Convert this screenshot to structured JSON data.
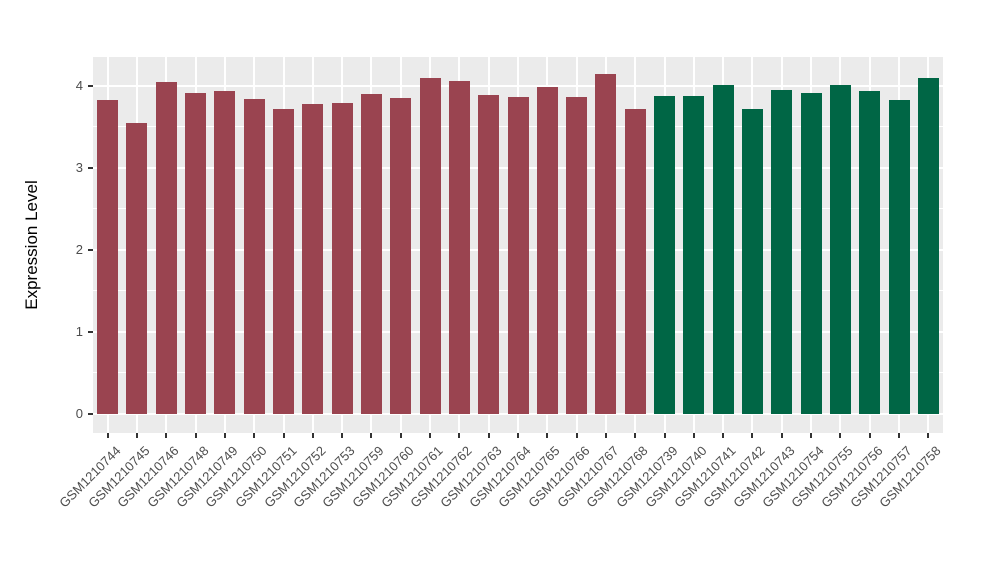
{
  "figure": {
    "background_color": "#FFFFFF",
    "panel_background_color": "#EBEBEB",
    "gridline_color": "#FFFFFF",
    "tick_mark_color": "#333333",
    "axis_text_color": "#4D4D4D"
  },
  "chart_data": {
    "type": "bar",
    "title": "",
    "xlabel": "",
    "ylabel": "Expression Level",
    "ylim": [
      0,
      4.35
    ],
    "yticks": [
      0,
      1,
      2,
      3,
      4
    ],
    "yticks_minor": [
      0.5,
      1.5,
      2.5,
      3.5
    ],
    "grid": "white major+minor horizontal lines, white major vertical lines on gray panel",
    "legend_position": "none",
    "categories": [
      "GSM1210744",
      "GSM1210745",
      "GSM1210746",
      "GSM1210748",
      "GSM1210749",
      "GSM1210750",
      "GSM1210751",
      "GSM1210752",
      "GSM1210753",
      "GSM1210759",
      "GSM1210760",
      "GSM1210761",
      "GSM1210762",
      "GSM1210763",
      "GSM1210764",
      "GSM1210765",
      "GSM1210766",
      "GSM1210767",
      "GSM1210768",
      "GSM1210739",
      "GSM1210740",
      "GSM1210741",
      "GSM1210742",
      "GSM1210743",
      "GSM1210754",
      "GSM1210755",
      "GSM1210756",
      "GSM1210757",
      "GSM1210758"
    ],
    "values": [
      3.83,
      3.54,
      4.04,
      3.91,
      3.93,
      3.84,
      3.71,
      3.78,
      3.79,
      3.9,
      3.85,
      4.09,
      4.06,
      3.89,
      3.86,
      3.98,
      3.86,
      4.14,
      3.71,
      3.87,
      3.87,
      4.01,
      3.71,
      3.95,
      3.91,
      4.01,
      3.93,
      3.82,
      4.09
    ],
    "bar_groups": [
      "maroon",
      "maroon",
      "maroon",
      "maroon",
      "maroon",
      "maroon",
      "maroon",
      "maroon",
      "maroon",
      "maroon",
      "maroon",
      "maroon",
      "maroon",
      "maroon",
      "maroon",
      "maroon",
      "maroon",
      "maroon",
      "maroon",
      "green",
      "green",
      "green",
      "green",
      "green",
      "green",
      "green",
      "green",
      "green",
      "green"
    ],
    "group_colors": {
      "maroon": "#9A4450",
      "green": "#006645"
    }
  }
}
